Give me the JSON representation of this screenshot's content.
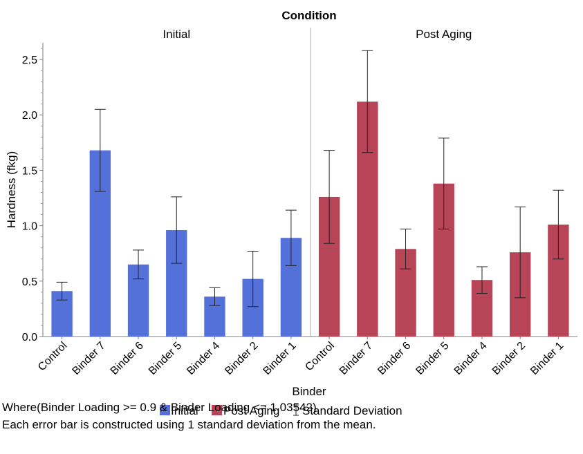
{
  "chart_data": {
    "type": "bar",
    "title": "Condition",
    "xlabel": "Binder",
    "ylabel": "Hardness (fkg)",
    "ylim": [
      0,
      2.65
    ],
    "yticks": [
      0.0,
      0.5,
      1.0,
      1.5,
      2.0,
      2.5
    ],
    "ytick_labels": [
      "0.0",
      "0.5",
      "1.0",
      "1.5",
      "2.0",
      "2.5"
    ],
    "grid": false,
    "legend_position": "bottom",
    "legend": [
      "Initial",
      "Post Aging",
      "Standard Deviation"
    ],
    "categories": [
      "Control",
      "Binder 7",
      "Binder 6",
      "Binder 5",
      "Binder 4",
      "Binder 2",
      "Binder 1"
    ],
    "series": [
      {
        "name": "Initial",
        "color": "#5470d9",
        "values": [
          0.41,
          1.68,
          0.65,
          0.96,
          0.36,
          0.52,
          0.89
        ],
        "std": [
          0.08,
          0.37,
          0.13,
          0.3,
          0.08,
          0.25,
          0.25
        ]
      },
      {
        "name": "Post Aging",
        "color": "#b84457",
        "values": [
          1.26,
          2.12,
          0.79,
          1.38,
          0.51,
          0.76,
          1.01
        ],
        "std": [
          0.42,
          0.46,
          0.18,
          0.41,
          0.12,
          0.41,
          0.31
        ]
      }
    ]
  },
  "notes": [
    "Where(Binder Loading >= 0.9 & Binder Loading <= 1.03542)",
    "Each error bar is constructed using 1 standard deviation from the mean."
  ]
}
